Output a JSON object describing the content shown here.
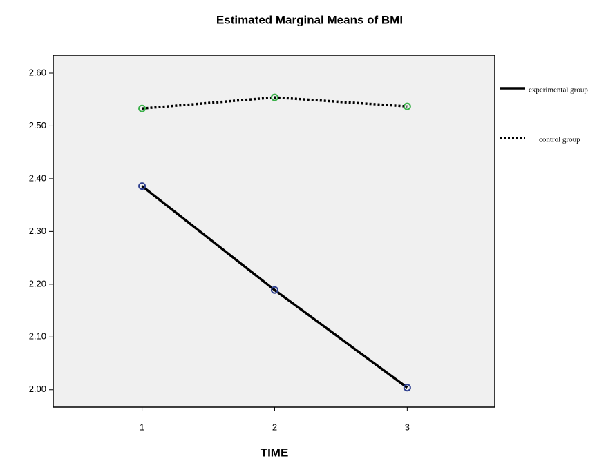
{
  "chart_data": {
    "type": "line",
    "title": "Estimated Marginal Means of BMI",
    "x_label": "TIME",
    "x": [
      1,
      2,
      3
    ],
    "xlim": [
      0.33,
      3.66
    ],
    "xticks": [
      1,
      2,
      3
    ],
    "ylim": [
      1.967,
      2.634
    ],
    "yticks": [
      {
        "value": 2.0,
        "label": "2.00"
      },
      {
        "value": 2.1,
        "label": "2.10"
      },
      {
        "value": 2.2,
        "label": "2.20"
      },
      {
        "value": 2.3,
        "label": "2.30"
      },
      {
        "value": 2.4,
        "label": "2.40"
      },
      {
        "value": 2.5,
        "label": "2.50"
      },
      {
        "value": 2.6,
        "label": "2.60"
      }
    ],
    "grid": false,
    "legend": "right",
    "series": [
      {
        "name": "experimental group",
        "color": "#000000",
        "marker_color": "#2e3f8f",
        "line_style": "solid",
        "values": [
          2.386,
          2.189,
          2.004
        ]
      },
      {
        "name": "control group",
        "color": "#000000",
        "marker_color": "#3bb04a",
        "line_style": "dotted",
        "values": [
          2.533,
          2.554,
          2.537
        ]
      }
    ]
  }
}
